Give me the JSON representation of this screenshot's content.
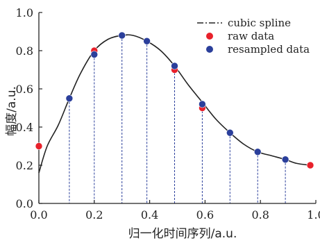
{
  "chart_data": {
    "type": "scatter",
    "xlabel": "归一化时间序列/a.u.",
    "ylabel": "幅度/a.u.",
    "xlim": [
      0.0,
      1.0
    ],
    "ylim": [
      0.0,
      1.0
    ],
    "x_ticks": [
      "0.0",
      "0.2",
      "0.4",
      "0.6",
      "0.8",
      "1.0"
    ],
    "y_ticks": [
      "0.0",
      "0.2",
      "0.4",
      "0.6",
      "0.8",
      "1.0"
    ],
    "legend_position": "top-right",
    "grid": false,
    "series": [
      {
        "name": "cubic spline",
        "kind": "line",
        "color": "#222222",
        "x": [
          0.0,
          0.03,
          0.07,
          0.11,
          0.15,
          0.2,
          0.25,
          0.3,
          0.34,
          0.39,
          0.44,
          0.49,
          0.54,
          0.59,
          0.64,
          0.69,
          0.74,
          0.79,
          0.84,
          0.89,
          0.93,
          0.98
        ],
        "y": [
          0.16,
          0.3,
          0.41,
          0.55,
          0.68,
          0.8,
          0.86,
          0.88,
          0.88,
          0.85,
          0.8,
          0.72,
          0.62,
          0.53,
          0.44,
          0.37,
          0.31,
          0.27,
          0.25,
          0.23,
          0.21,
          0.2
        ]
      },
      {
        "name": "raw data",
        "kind": "points",
        "color": "#e8212b",
        "x": [
          0.0,
          0.2,
          0.49,
          0.59,
          0.98
        ],
        "y": [
          0.3,
          0.8,
          0.7,
          0.5,
          0.2
        ]
      },
      {
        "name": "resampled data",
        "kind": "points",
        "color": "#2b3f9b",
        "stems": true,
        "x": [
          0.11,
          0.2,
          0.3,
          0.39,
          0.49,
          0.59,
          0.69,
          0.79,
          0.89
        ],
        "y": [
          0.55,
          0.78,
          0.88,
          0.85,
          0.72,
          0.52,
          0.37,
          0.27,
          0.23
        ]
      }
    ]
  }
}
